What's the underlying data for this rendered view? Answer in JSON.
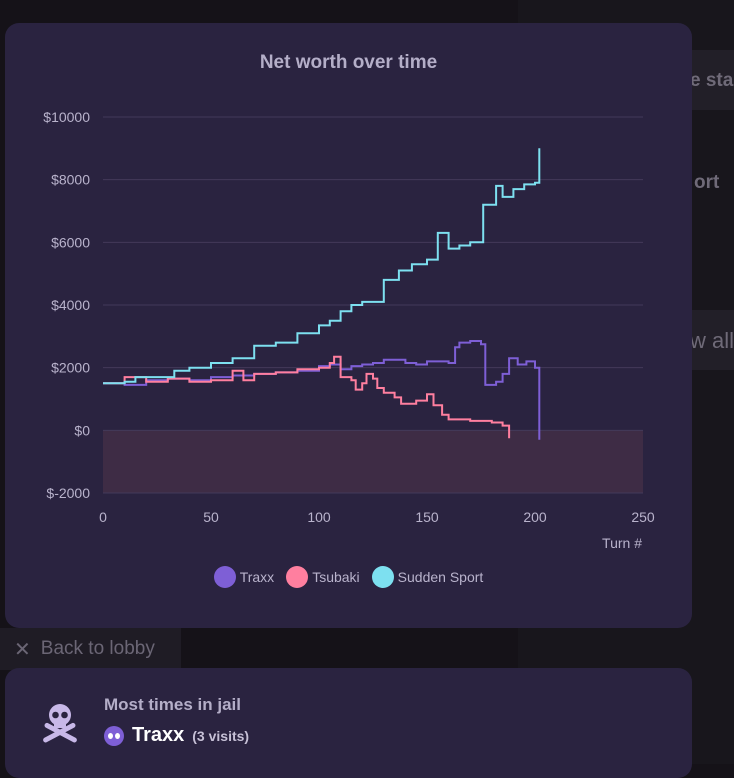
{
  "background": {
    "right_fragments": [
      "e sta",
      "ort",
      "w all"
    ]
  },
  "chart_data": {
    "type": "line",
    "title": "Net worth over time",
    "xlabel": "Turn #",
    "ylabel": "",
    "xlim": [
      0,
      250
    ],
    "ylim": [
      -2000,
      10000
    ],
    "x_ticks": [
      0,
      50,
      100,
      150,
      200,
      250
    ],
    "y_ticks": [
      -2000,
      0,
      2000,
      4000,
      6000,
      8000,
      10000
    ],
    "y_tick_labels": [
      "$-2000",
      "$0",
      "$2000",
      "$4000",
      "$6000",
      "$8000",
      "$10000"
    ],
    "negative_region_color": "#3e2c45",
    "grid": true,
    "legend_position": "bottom",
    "line_style": "step",
    "series": [
      {
        "name": "Traxx",
        "color": "#7e5fd6",
        "points": [
          [
            0,
            1500
          ],
          [
            10,
            1450
          ],
          [
            20,
            1600
          ],
          [
            30,
            1650
          ],
          [
            40,
            1600
          ],
          [
            50,
            1700
          ],
          [
            60,
            1750
          ],
          [
            70,
            1800
          ],
          [
            80,
            1850
          ],
          [
            90,
            1900
          ],
          [
            100,
            2050
          ],
          [
            105,
            2100
          ],
          [
            110,
            1950
          ],
          [
            115,
            2050
          ],
          [
            120,
            2100
          ],
          [
            125,
            2150
          ],
          [
            130,
            2250
          ],
          [
            140,
            2150
          ],
          [
            145,
            2100
          ],
          [
            150,
            2200
          ],
          [
            160,
            2150
          ],
          [
            163,
            2650
          ],
          [
            165,
            2800
          ],
          [
            170,
            2850
          ],
          [
            175,
            2750
          ],
          [
            177,
            1450
          ],
          [
            182,
            1550
          ],
          [
            185,
            1800
          ],
          [
            188,
            2300
          ],
          [
            192,
            2100
          ],
          [
            196,
            2200
          ],
          [
            200,
            2000
          ],
          [
            202,
            -300
          ]
        ]
      },
      {
        "name": "Tsubaki",
        "color": "#ff7f9f",
        "points": [
          [
            0,
            1500
          ],
          [
            10,
            1700
          ],
          [
            20,
            1550
          ],
          [
            30,
            1650
          ],
          [
            40,
            1550
          ],
          [
            50,
            1600
          ],
          [
            60,
            1900
          ],
          [
            65,
            1600
          ],
          [
            70,
            1800
          ],
          [
            80,
            1850
          ],
          [
            90,
            1950
          ],
          [
            100,
            2000
          ],
          [
            105,
            2150
          ],
          [
            107,
            2350
          ],
          [
            110,
            1700
          ],
          [
            115,
            1600
          ],
          [
            117,
            1300
          ],
          [
            120,
            1500
          ],
          [
            122,
            1800
          ],
          [
            125,
            1650
          ],
          [
            127,
            1350
          ],
          [
            130,
            1200
          ],
          [
            135,
            1050
          ],
          [
            138,
            850
          ],
          [
            145,
            950
          ],
          [
            150,
            1150
          ],
          [
            153,
            800
          ],
          [
            157,
            500
          ],
          [
            160,
            350
          ],
          [
            170,
            300
          ],
          [
            180,
            250
          ],
          [
            185,
            150
          ],
          [
            188,
            -250
          ]
        ]
      },
      {
        "name": "Sudden Sport",
        "color": "#7de0f0",
        "points": [
          [
            0,
            1500
          ],
          [
            10,
            1550
          ],
          [
            15,
            1700
          ],
          [
            25,
            1700
          ],
          [
            33,
            1900
          ],
          [
            40,
            2000
          ],
          [
            50,
            2150
          ],
          [
            60,
            2300
          ],
          [
            70,
            2700
          ],
          [
            80,
            2800
          ],
          [
            90,
            3100
          ],
          [
            100,
            3350
          ],
          [
            105,
            3500
          ],
          [
            110,
            3800
          ],
          [
            115,
            4000
          ],
          [
            120,
            4100
          ],
          [
            130,
            4800
          ],
          [
            137,
            5100
          ],
          [
            143,
            5300
          ],
          [
            150,
            5450
          ],
          [
            155,
            6300
          ],
          [
            160,
            5800
          ],
          [
            165,
            5900
          ],
          [
            170,
            6000
          ],
          [
            176,
            7200
          ],
          [
            182,
            7800
          ],
          [
            185,
            7450
          ],
          [
            190,
            7700
          ],
          [
            195,
            7850
          ],
          [
            200,
            7900
          ],
          [
            202,
            9000
          ]
        ]
      }
    ]
  },
  "nav": {
    "back_label": "Back to lobby"
  },
  "jail": {
    "title": "Most times in jail",
    "player_name": "Traxx",
    "visits": "(3 visits)",
    "icon": "skull-crossbones-icon"
  }
}
